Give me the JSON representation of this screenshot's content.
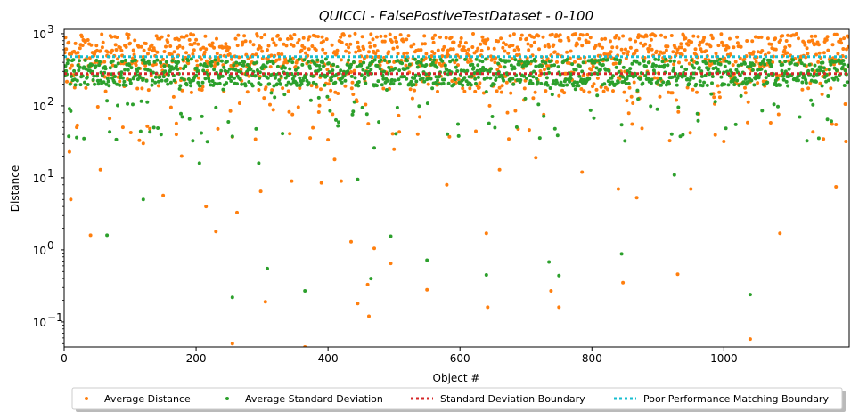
{
  "chart_data": {
    "type": "scatter",
    "title": "QUICCI - FalsePostiveTestDataset - 0-100",
    "xlabel": "Object #",
    "ylabel": "Distance",
    "xlim": [
      0,
      1190
    ],
    "ylim": [
      0.045,
      1150
    ],
    "yscale": "log",
    "x_ticks": [
      0,
      200,
      400,
      600,
      800,
      1000
    ],
    "x_tick_labels": [
      "0",
      "200",
      "400",
      "600",
      "800",
      "1000"
    ],
    "y_ticks": [
      0.1,
      1,
      10,
      100,
      1000
    ],
    "y_tick_labels": [
      "10",
      "10",
      "10",
      "10",
      "10"
    ],
    "y_tick_exponents": [
      "−1",
      "0",
      "1",
      "2",
      "3"
    ],
    "grid": false,
    "legend_position": "bottom-center, below plot",
    "series": [
      {
        "name": "Average Distance",
        "kind": "points",
        "color": "#ff7f0e",
        "n": 1190,
        "typical_range": [
          150,
          1000
        ],
        "sample_low_values": [
          [
            8,
            23
          ],
          [
            10,
            5
          ],
          [
            40,
            1.6
          ],
          [
            55,
            13
          ],
          [
            120,
            30
          ],
          [
            150,
            5.7
          ],
          [
            170,
            40
          ],
          [
            178,
            20
          ],
          [
            215,
            4
          ],
          [
            230,
            1.8
          ],
          [
            255,
            0.05
          ],
          [
            262,
            3.3
          ],
          [
            298,
            6.5
          ],
          [
            305,
            0.19
          ],
          [
            345,
            9
          ],
          [
            365,
            0.045
          ],
          [
            390,
            8.5
          ],
          [
            410,
            18
          ],
          [
            420,
            9
          ],
          [
            435,
            1.3
          ],
          [
            445,
            0.18
          ],
          [
            460,
            0.33
          ],
          [
            462,
            0.12
          ],
          [
            470,
            1.05
          ],
          [
            495,
            0.65
          ],
          [
            500,
            25
          ],
          [
            550,
            0.28
          ],
          [
            580,
            8
          ],
          [
            640,
            1.7
          ],
          [
            642,
            0.16
          ],
          [
            660,
            13
          ],
          [
            715,
            19
          ],
          [
            738,
            0.27
          ],
          [
            750,
            0.16
          ],
          [
            785,
            12
          ],
          [
            840,
            7
          ],
          [
            847,
            0.35
          ],
          [
            868,
            5.3
          ],
          [
            930,
            0.46
          ],
          [
            950,
            7
          ],
          [
            1000,
            32
          ],
          [
            1040,
            0.058
          ],
          [
            1085,
            1.7
          ],
          [
            1170,
            7.5
          ],
          [
            1185,
            32
          ]
        ]
      },
      {
        "name": "Average Standard Deviation",
        "kind": "points",
        "color": "#2ca02c",
        "n": 1190,
        "typical_range": [
          150,
          500
        ],
        "sample_low_values": [
          [
            30,
            35
          ],
          [
            65,
            1.6
          ],
          [
            120,
            5
          ],
          [
            205,
            16
          ],
          [
            255,
            0.22
          ],
          [
            295,
            16
          ],
          [
            308,
            0.55
          ],
          [
            365,
            0.27
          ],
          [
            445,
            9.5
          ],
          [
            465,
            0.4
          ],
          [
            470,
            26
          ],
          [
            495,
            1.55
          ],
          [
            550,
            0.72
          ],
          [
            640,
            0.45
          ],
          [
            735,
            0.68
          ],
          [
            750,
            0.44
          ],
          [
            845,
            0.88
          ],
          [
            925,
            11
          ],
          [
            1040,
            0.24
          ]
        ]
      },
      {
        "name": "Standard Deviation Boundary",
        "kind": "dotted-line",
        "color": "#d62728",
        "value": 280
      },
      {
        "name": "Poor Performance Matching Boundary",
        "kind": "dotted-line",
        "color": "#17becf",
        "value": 480
      }
    ]
  }
}
